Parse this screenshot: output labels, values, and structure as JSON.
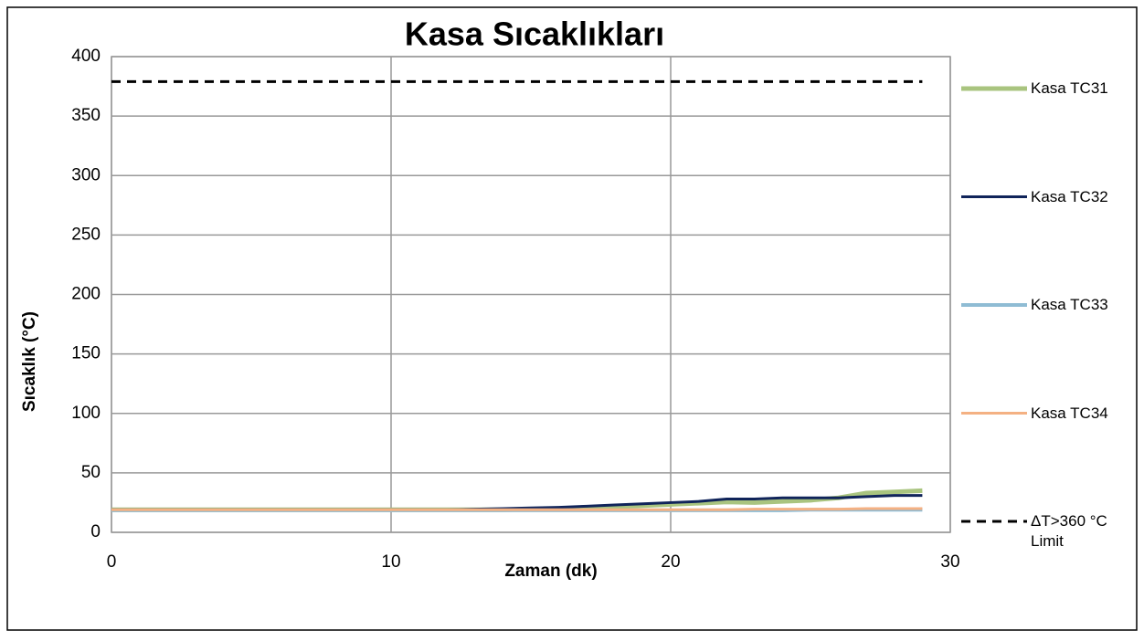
{
  "chart_data": {
    "type": "line",
    "title": "Kasa Sıcaklıkları",
    "xlabel": "Zaman (dk)",
    "ylabel": "Sıcaklık (°C)",
    "x": [
      0,
      1,
      2,
      3,
      4,
      5,
      6,
      7,
      8,
      9,
      10,
      11,
      12,
      13,
      14,
      15,
      16,
      17,
      18,
      19,
      20,
      21,
      22,
      23,
      24,
      25,
      26,
      27,
      28,
      29
    ],
    "xlim": [
      0,
      30
    ],
    "xticks": [
      0,
      10,
      20,
      30
    ],
    "ylim": [
      0,
      400
    ],
    "yticks": [
      0,
      50,
      100,
      150,
      200,
      250,
      300,
      350,
      400
    ],
    "grid": true,
    "legend": "right",
    "series": [
      {
        "name": "Kasa TC31",
        "color": "#a9c47f",
        "width": 5,
        "dash": false,
        "values": [
          19,
          19,
          19,
          19,
          19,
          19,
          19,
          19,
          19,
          19,
          19,
          19,
          19,
          19,
          19,
          19.5,
          20,
          20.5,
          21.5,
          22.5,
          23.5,
          24.5,
          25.5,
          25,
          26,
          27,
          29,
          33,
          34,
          35
        ]
      },
      {
        "name": "Kasa TC32",
        "color": "#10245a",
        "width": 3,
        "dash": false,
        "values": [
          19,
          19,
          19,
          19,
          19,
          19,
          19,
          19,
          19,
          19,
          19,
          19,
          19,
          19.5,
          20,
          20.5,
          21,
          22,
          23,
          24,
          25,
          26,
          28,
          28,
          29,
          29,
          29,
          30,
          31,
          31
        ]
      },
      {
        "name": "Kasa TC33",
        "color": "#8fbcd4",
        "width": 4,
        "dash": false,
        "values": [
          18.5,
          18.5,
          18.5,
          18.5,
          18.5,
          18.5,
          18.5,
          18.5,
          18.5,
          18.5,
          18.5,
          18.5,
          18.5,
          18.5,
          18.5,
          18.5,
          18.5,
          18.5,
          18.5,
          18.5,
          18.5,
          18.5,
          18.5,
          18.5,
          18.5,
          19,
          19,
          19,
          19,
          19
        ]
      },
      {
        "name": "Kasa TC34",
        "color": "#f4b183",
        "width": 3,
        "dash": false,
        "values": [
          19,
          19,
          19,
          19,
          19,
          19,
          19,
          19,
          19,
          19,
          19,
          19,
          19,
          19,
          19,
          19,
          19,
          19,
          19,
          19,
          19,
          19,
          19,
          19.5,
          19.5,
          19.5,
          19.5,
          20,
          20,
          20
        ]
      },
      {
        "name": "ΔT>360 °C Limit",
        "color": "#000000",
        "width": 3,
        "dash": true,
        "values": [
          379,
          379,
          379,
          379,
          379,
          379,
          379,
          379,
          379,
          379,
          379,
          379,
          379,
          379,
          379,
          379,
          379,
          379,
          379,
          379,
          379,
          379,
          379,
          379,
          379,
          379,
          379,
          379,
          379,
          379
        ]
      }
    ]
  }
}
